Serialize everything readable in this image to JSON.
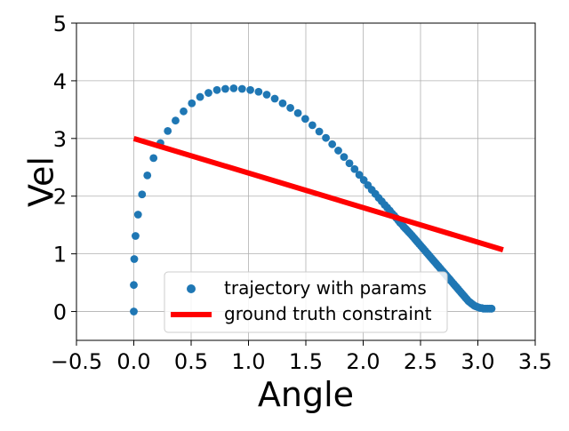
{
  "chart_data": {
    "type": "scatter",
    "xlabel": "Angle",
    "ylabel": "Vel",
    "xlim": [
      -0.5,
      3.5
    ],
    "ylim": [
      -0.5,
      5
    ],
    "xticks": [
      -0.5,
      0.0,
      0.5,
      1.0,
      1.5,
      2.0,
      2.5,
      3.0,
      3.5
    ],
    "xtick_labels": [
      "−0.5",
      "0.0",
      "0.5",
      "1.0",
      "1.5",
      "2.0",
      "2.5",
      "3.0",
      "3.5"
    ],
    "yticks": [
      0,
      1,
      2,
      3,
      4,
      5
    ],
    "ytick_labels": [
      "0",
      "1",
      "2",
      "3",
      "4",
      "5"
    ],
    "grid": true,
    "legend_position": "lower-center",
    "series": [
      {
        "name": "trajectory with params",
        "kind": "scatter",
        "color": "#1f77b4",
        "x": [
          0.0,
          0.0,
          0.004,
          0.015,
          0.037,
          0.072,
          0.118,
          0.172,
          0.232,
          0.296,
          0.364,
          0.434,
          0.506,
          0.578,
          0.651,
          0.725,
          0.798,
          0.871,
          0.944,
          1.016,
          1.088,
          1.159,
          1.229,
          1.298,
          1.365,
          1.431,
          1.495,
          1.557,
          1.617,
          1.675,
          1.73,
          1.783,
          1.833,
          1.88,
          1.925,
          1.966,
          2.005,
          2.041,
          2.075,
          2.106,
          2.135,
          2.162,
          2.187,
          2.21,
          2.232,
          2.252,
          2.271,
          2.289,
          2.306,
          2.322,
          2.338,
          2.353,
          2.368,
          2.382,
          2.396,
          2.41,
          2.424,
          2.437,
          2.45,
          2.463,
          2.476,
          2.489,
          2.502,
          2.515,
          2.528,
          2.541,
          2.554,
          2.567,
          2.58,
          2.593,
          2.606,
          2.619,
          2.632,
          2.645,
          2.658,
          2.671,
          2.684,
          2.697,
          2.71,
          2.723,
          2.736,
          2.749,
          2.762,
          2.775,
          2.788,
          2.801,
          2.814,
          2.827,
          2.84,
          2.853,
          2.866,
          2.879,
          2.892,
          2.905,
          2.918,
          2.931,
          2.944,
          2.957,
          2.97,
          2.983,
          2.996,
          3.009,
          3.022,
          3.035,
          3.048,
          3.061,
          3.074,
          3.087,
          3.1,
          3.113,
          3.12
        ],
        "y": [
          0.0,
          0.46,
          0.91,
          1.31,
          1.68,
          2.03,
          2.36,
          2.66,
          2.92,
          3.13,
          3.31,
          3.47,
          3.61,
          3.72,
          3.79,
          3.84,
          3.86,
          3.87,
          3.86,
          3.84,
          3.81,
          3.76,
          3.69,
          3.61,
          3.53,
          3.44,
          3.34,
          3.23,
          3.12,
          3.01,
          2.9,
          2.79,
          2.68,
          2.57,
          2.47,
          2.37,
          2.28,
          2.19,
          2.11,
          2.04,
          1.97,
          1.91,
          1.85,
          1.8,
          1.75,
          1.7,
          1.66,
          1.62,
          1.58,
          1.54,
          1.51,
          1.47,
          1.44,
          1.41,
          1.38,
          1.35,
          1.32,
          1.29,
          1.26,
          1.23,
          1.2,
          1.17,
          1.14,
          1.11,
          1.08,
          1.05,
          1.02,
          0.99,
          0.96,
          0.93,
          0.9,
          0.87,
          0.84,
          0.81,
          0.78,
          0.75,
          0.72,
          0.69,
          0.66,
          0.63,
          0.6,
          0.57,
          0.54,
          0.51,
          0.48,
          0.45,
          0.42,
          0.39,
          0.36,
          0.33,
          0.3,
          0.27,
          0.24,
          0.21,
          0.18,
          0.16,
          0.14,
          0.12,
          0.1,
          0.09,
          0.08,
          0.07,
          0.06,
          0.06,
          0.05,
          0.05,
          0.05,
          0.05,
          0.05,
          0.05,
          0.05
        ]
      },
      {
        "name": "ground truth constraint",
        "kind": "line",
        "color": "#ff0000",
        "x": [
          0.0,
          3.22
        ],
        "y": [
          3.0,
          1.07
        ]
      }
    ]
  }
}
